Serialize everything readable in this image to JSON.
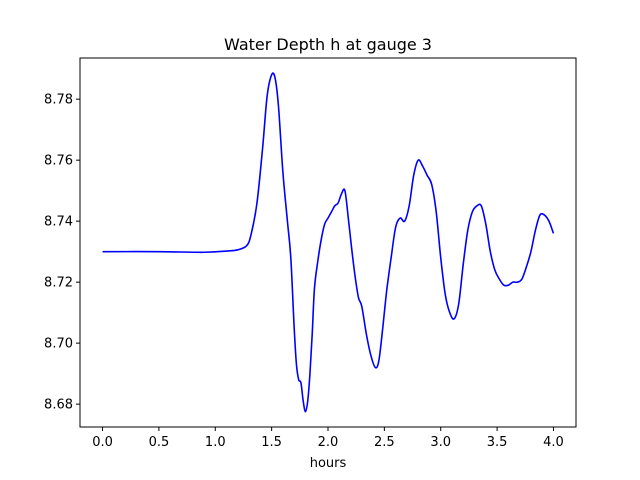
{
  "chart_data": {
    "type": "line",
    "title": "Water Depth h at gauge 3",
    "xlabel": "hours",
    "ylabel": "",
    "xlim": [
      -0.2,
      4.2
    ],
    "ylim": [
      8.6725,
      8.7935
    ],
    "xticks": [
      0.0,
      0.5,
      1.0,
      1.5,
      2.0,
      2.5,
      3.0,
      3.5,
      4.0
    ],
    "xtick_labels": [
      "0.0",
      "0.5",
      "1.0",
      "1.5",
      "2.0",
      "2.5",
      "3.0",
      "3.5",
      "4.0"
    ],
    "yticks": [
      8.68,
      8.7,
      8.72,
      8.74,
      8.76,
      8.78
    ],
    "ytick_labels": [
      "8.68",
      "8.70",
      "8.72",
      "8.74",
      "8.76",
      "8.78"
    ],
    "grid": false,
    "series": [
      {
        "color": "#0000ff",
        "x": [
          0.0,
          0.5,
          0.9,
          1.1,
          1.2,
          1.28,
          1.32,
          1.37,
          1.42,
          1.46,
          1.5,
          1.53,
          1.56,
          1.6,
          1.64,
          1.67,
          1.7,
          1.72,
          1.74,
          1.76,
          1.78,
          1.8,
          1.82,
          1.84,
          1.86,
          1.88,
          1.91,
          1.94,
          1.97,
          2.0,
          2.03,
          2.06,
          2.09,
          2.12,
          2.15,
          2.18,
          2.21,
          2.24,
          2.27,
          2.3,
          2.34,
          2.38,
          2.42,
          2.45,
          2.48,
          2.52,
          2.56,
          2.6,
          2.64,
          2.68,
          2.72,
          2.76,
          2.8,
          2.84,
          2.88,
          2.92,
          2.96,
          3.0,
          3.04,
          3.08,
          3.12,
          3.16,
          3.2,
          3.24,
          3.28,
          3.32,
          3.36,
          3.4,
          3.44,
          3.48,
          3.52,
          3.56,
          3.6,
          3.64,
          3.68,
          3.72,
          3.76,
          3.8,
          3.84,
          3.88,
          3.92,
          3.96,
          4.0
        ],
        "y": [
          8.73,
          8.73,
          8.7298,
          8.7302,
          8.7306,
          8.732,
          8.736,
          8.746,
          8.764,
          8.781,
          8.788,
          8.787,
          8.778,
          8.756,
          8.74,
          8.728,
          8.705,
          8.693,
          8.688,
          8.687,
          8.681,
          8.6775,
          8.681,
          8.69,
          8.703,
          8.718,
          8.727,
          8.734,
          8.739,
          8.741,
          8.743,
          8.745,
          8.746,
          8.749,
          8.75,
          8.741,
          8.731,
          8.722,
          8.715,
          8.712,
          8.703,
          8.696,
          8.692,
          8.694,
          8.703,
          8.717,
          8.728,
          8.738,
          8.741,
          8.74,
          8.745,
          8.755,
          8.76,
          8.758,
          8.755,
          8.752,
          8.743,
          8.728,
          8.716,
          8.71,
          8.708,
          8.713,
          8.726,
          8.737,
          8.743,
          8.745,
          8.745,
          8.739,
          8.73,
          8.724,
          8.721,
          8.719,
          8.719,
          8.72,
          8.72,
          8.721,
          8.725,
          8.73,
          8.737,
          8.742,
          8.742,
          8.74,
          8.736
        ]
      }
    ]
  }
}
